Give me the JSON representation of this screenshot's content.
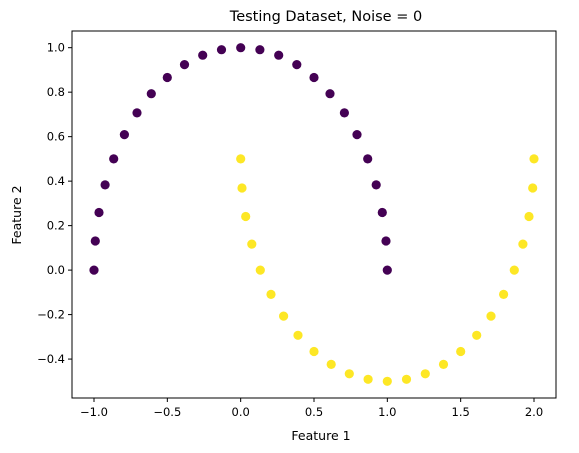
{
  "chart_data": {
    "type": "scatter",
    "title": "Testing Dataset, Noise = 0",
    "xlabel": "Feature 1",
    "ylabel": "Feature 2",
    "xlim": [
      -1.15,
      2.15
    ],
    "ylim": [
      -0.575,
      1.075
    ],
    "xticks": [
      -1.0,
      -0.5,
      0.0,
      0.5,
      1.0,
      1.5,
      2.0
    ],
    "yticks": [
      -0.4,
      -0.2,
      0.0,
      0.2,
      0.4,
      0.6,
      0.8,
      1.0
    ],
    "xtick_labels": [
      "−1.0",
      "−0.5",
      "0.0",
      "0.5",
      "1.0",
      "1.5",
      "2.0"
    ],
    "ytick_labels": [
      "−0.4",
      "−0.2",
      "0.0",
      "0.2",
      "0.4",
      "0.6",
      "0.8",
      "1.0"
    ],
    "grid": false,
    "legend": "none",
    "colors": {
      "class_0": "#440154",
      "class_1": "#fde725"
    },
    "series": [
      {
        "class": 0,
        "color": "#440154",
        "points": [
          [
            -1.0,
            0.0
          ],
          [
            -0.991,
            0.131
          ],
          [
            -0.966,
            0.259
          ],
          [
            -0.924,
            0.383
          ],
          [
            -0.866,
            0.5
          ],
          [
            -0.793,
            0.609
          ],
          [
            -0.707,
            0.707
          ],
          [
            -0.609,
            0.793
          ],
          [
            -0.5,
            0.866
          ],
          [
            -0.383,
            0.924
          ],
          [
            -0.259,
            0.966
          ],
          [
            -0.131,
            0.991
          ],
          [
            0.0,
            1.0
          ],
          [
            0.131,
            0.991
          ],
          [
            0.259,
            0.966
          ],
          [
            0.383,
            0.924
          ],
          [
            0.5,
            0.866
          ],
          [
            0.609,
            0.793
          ],
          [
            0.707,
            0.707
          ],
          [
            0.793,
            0.609
          ],
          [
            0.866,
            0.5
          ],
          [
            0.924,
            0.383
          ],
          [
            0.966,
            0.259
          ],
          [
            0.991,
            0.131
          ],
          [
            1.0,
            0.0
          ]
        ]
      },
      {
        "class": 1,
        "color": "#fde725",
        "points": [
          [
            0.0,
            0.5
          ],
          [
            0.009,
            0.369
          ],
          [
            0.034,
            0.241
          ],
          [
            0.076,
            0.117
          ],
          [
            0.134,
            0.0
          ],
          [
            0.207,
            -0.109
          ],
          [
            0.293,
            -0.207
          ],
          [
            0.391,
            -0.293
          ],
          [
            0.5,
            -0.366
          ],
          [
            0.617,
            -0.424
          ],
          [
            0.741,
            -0.466
          ],
          [
            0.869,
            -0.491
          ],
          [
            1.0,
            -0.5
          ],
          [
            1.131,
            -0.491
          ],
          [
            1.259,
            -0.466
          ],
          [
            1.383,
            -0.424
          ],
          [
            1.5,
            -0.366
          ],
          [
            1.609,
            -0.293
          ],
          [
            1.707,
            -0.207
          ],
          [
            1.793,
            -0.109
          ],
          [
            1.866,
            0.0
          ],
          [
            1.924,
            0.117
          ],
          [
            1.966,
            0.241
          ],
          [
            1.991,
            0.369
          ],
          [
            2.0,
            0.5
          ]
        ]
      }
    ]
  }
}
